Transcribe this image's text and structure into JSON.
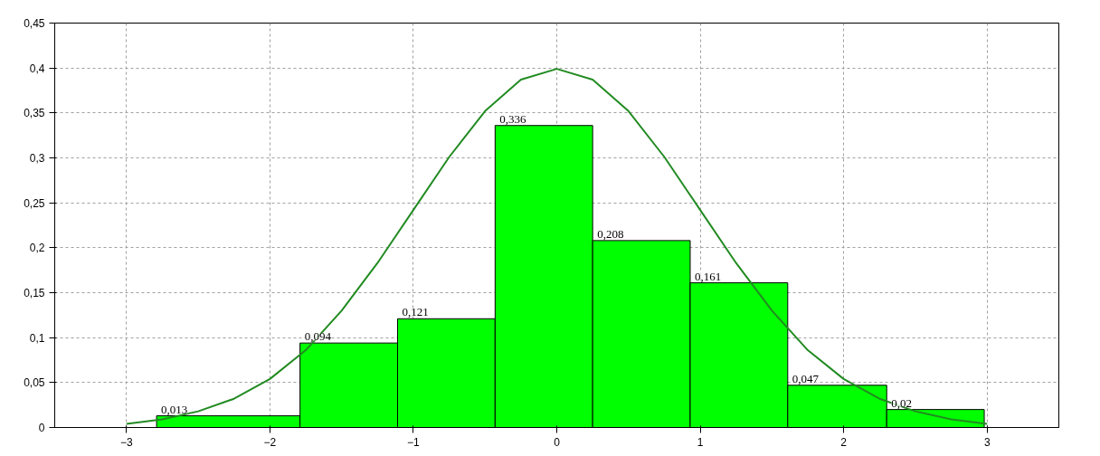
{
  "chart_data": {
    "type": "histogram",
    "xlim": [
      -3.5,
      3.5
    ],
    "ylim": [
      0,
      0.45
    ],
    "xticks": [
      -3,
      -2,
      -1,
      0,
      1,
      2,
      3
    ],
    "yticks": [
      0,
      {
        "value": 0.05,
        "label": "0,05"
      },
      {
        "value": 0.1,
        "label": "0,1"
      },
      {
        "value": 0.15,
        "label": "0,15"
      },
      {
        "value": 0.2,
        "label": "0,2"
      },
      {
        "value": 0.25,
        "label": "0,25"
      },
      {
        "value": 0.3,
        "label": "0,3"
      },
      {
        "value": 0.35,
        "label": "0,35"
      },
      {
        "value": 0.4,
        "label": "0,4"
      },
      {
        "value": 0.45,
        "label": "0,45"
      }
    ],
    "grid": true,
    "series": [
      {
        "color": "#00ff00",
        "bins": [
          -2.79,
          -1.79,
          -1.11,
          -0.43,
          0.25,
          0.93,
          1.61,
          2.3,
          2.98
        ],
        "values": [
          0.013,
          0.094,
          0.121,
          0.336,
          0.208,
          0.161,
          0.047,
          0.02
        ],
        "value_labels": [
          "0,013",
          "0,094",
          "0,121",
          "0,336",
          "0,208",
          "0,161",
          "0,047",
          "0,02"
        ]
      },
      {
        "type": "line",
        "color": "#228b22",
        "x": [
          -3,
          -2.75,
          -2.5,
          -2.25,
          -2,
          -1.75,
          -1.5,
          -1.25,
          -1,
          -0.75,
          -0.5,
          -0.25,
          0,
          0.25,
          0.5,
          0.75,
          1,
          1.25,
          1.5,
          1.75,
          2,
          2.25,
          2.5,
          2.75,
          3
        ],
        "values": [
          0.004,
          0.009,
          0.018,
          0.032,
          0.054,
          0.086,
          0.13,
          0.183,
          0.242,
          0.301,
          0.352,
          0.387,
          0.399,
          0.387,
          0.352,
          0.301,
          0.242,
          0.183,
          0.13,
          0.086,
          0.054,
          0.032,
          0.018,
          0.009,
          0.004
        ]
      }
    ]
  }
}
